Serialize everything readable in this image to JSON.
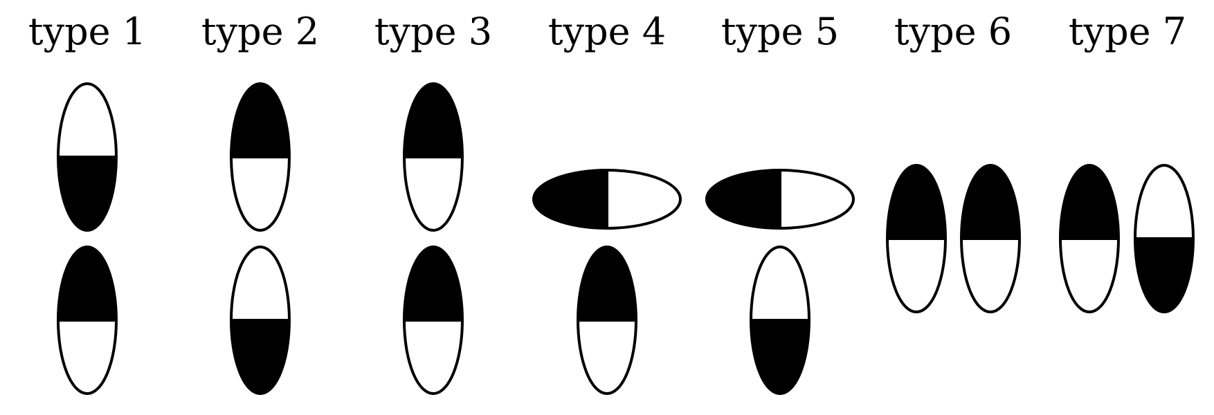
{
  "colors": {
    "fill": "#000000",
    "empty": "#ffffff",
    "stroke": "#000000"
  },
  "types": [
    {
      "label": "type 1",
      "units": [
        {
          "orientation": "vertical",
          "filled": "bottom"
        },
        {
          "orientation": "vertical",
          "filled": "top"
        }
      ]
    },
    {
      "label": "type 2",
      "units": [
        {
          "orientation": "vertical",
          "filled": "top"
        },
        {
          "orientation": "vertical",
          "filled": "bottom"
        }
      ]
    },
    {
      "label": "type 3",
      "units": [
        {
          "orientation": "vertical",
          "filled": "top"
        },
        {
          "orientation": "vertical",
          "filled": "top"
        }
      ]
    },
    {
      "label": "type 4",
      "units": [
        {
          "orientation": "horizontal",
          "filled": "left"
        },
        {
          "orientation": "vertical",
          "filled": "top"
        }
      ]
    },
    {
      "label": "type 5",
      "units": [
        {
          "orientation": "horizontal",
          "filled": "left"
        },
        {
          "orientation": "vertical",
          "filled": "bottom"
        }
      ]
    },
    {
      "label": "type 6",
      "units": [
        {
          "orientation": "vertical",
          "filled": "top"
        },
        {
          "orientation": "vertical",
          "filled": "top"
        }
      ]
    },
    {
      "label": "type 7",
      "units": [
        {
          "orientation": "vertical",
          "filled": "top"
        },
        {
          "orientation": "vertical",
          "filled": "bottom"
        }
      ]
    }
  ]
}
